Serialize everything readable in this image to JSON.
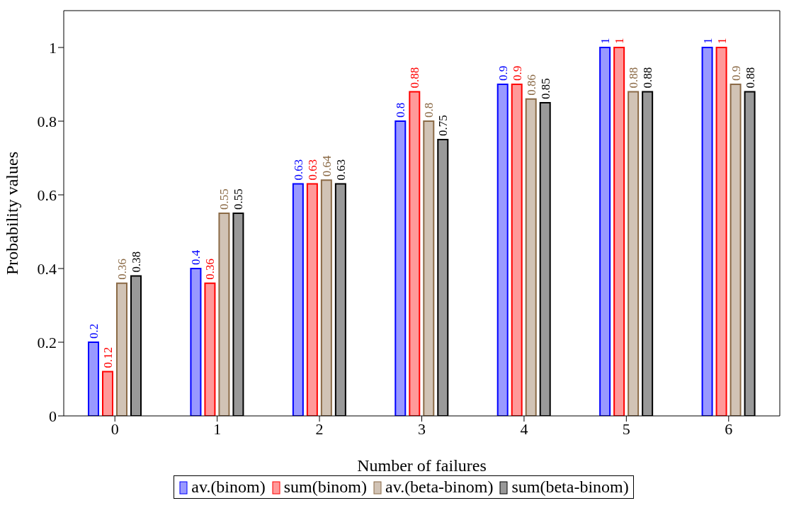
{
  "chart_data": {
    "type": "bar",
    "xlabel": "Number of failures",
    "ylabel": "Probability values",
    "categories": [
      "0",
      "1",
      "2",
      "3",
      "4",
      "5",
      "6"
    ],
    "series": [
      {
        "name": "av.(binom)",
        "color": "#0000ff",
        "values": [
          0.2,
          0.4,
          0.63,
          0.8,
          0.9,
          1,
          1
        ]
      },
      {
        "name": "sum(binom)",
        "color": "#ff0000",
        "values": [
          0.12,
          0.36,
          0.63,
          0.88,
          0.9,
          1,
          1
        ]
      },
      {
        "name": "av.(beta-binom)",
        "color": "#8b6a46",
        "values": [
          0.36,
          0.55,
          0.64,
          0.8,
          0.86,
          0.88,
          0.9
        ]
      },
      {
        "name": "sum(beta-binom)",
        "color": "#000000",
        "values": [
          0.38,
          0.55,
          0.63,
          0.75,
          0.85,
          0.88,
          0.88
        ]
      }
    ],
    "ylim": [
      0,
      1.1
    ],
    "yticks": [
      0,
      0.2,
      0.4,
      0.6,
      0.8,
      1
    ],
    "data_labels": true,
    "grid": false,
    "legend": "bottom"
  }
}
